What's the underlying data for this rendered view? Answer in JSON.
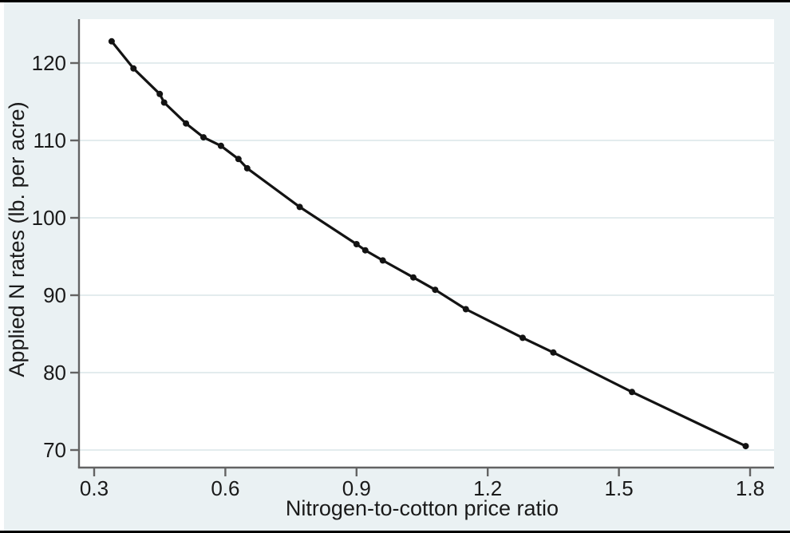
{
  "figure": {
    "outer_background_color": "#eaf1f3",
    "plot_background_color": "#ffffff",
    "page_edge_color": "#ffffff",
    "border_bar_color": "#000000",
    "axis_line_color": "#636363",
    "grid_line_color": "#e3ecee",
    "text_color": "#1a1a1a",
    "series_color": "#131313"
  },
  "chart_data": {
    "type": "line",
    "title": "",
    "xlabel": "Nitrogen-to-cotton price ratio",
    "ylabel": "Applied N rates (lb. per acre)",
    "x_ticks": [
      0.3,
      0.6,
      0.9,
      1.2,
      1.5,
      1.8
    ],
    "x_tick_labels": [
      "0.3",
      "0.6",
      "0.9",
      "1.2",
      "1.5",
      "1.8"
    ],
    "y_ticks": [
      70,
      80,
      90,
      100,
      110,
      120
    ],
    "y_tick_labels": [
      "70",
      "80",
      "90",
      "100",
      "110",
      "120"
    ],
    "xlim": [
      0.26,
      1.86
    ],
    "ylim": [
      67.7,
      125.7
    ],
    "grid": "horizontal",
    "legend": "none",
    "marker": "filled-circle",
    "series": [
      {
        "name": "Applied N rate",
        "x": [
          0.34,
          0.39,
          0.45,
          0.46,
          0.51,
          0.55,
          0.59,
          0.63,
          0.65,
          0.77,
          0.9,
          0.92,
          0.96,
          1.03,
          1.08,
          1.15,
          1.28,
          1.35,
          1.53,
          1.79
        ],
        "y": [
          122.8,
          119.3,
          116.0,
          114.9,
          112.2,
          110.4,
          109.3,
          107.6,
          106.4,
          101.4,
          96.6,
          95.8,
          94.5,
          92.3,
          90.7,
          88.2,
          84.5,
          82.6,
          77.5,
          70.5
        ]
      }
    ]
  }
}
